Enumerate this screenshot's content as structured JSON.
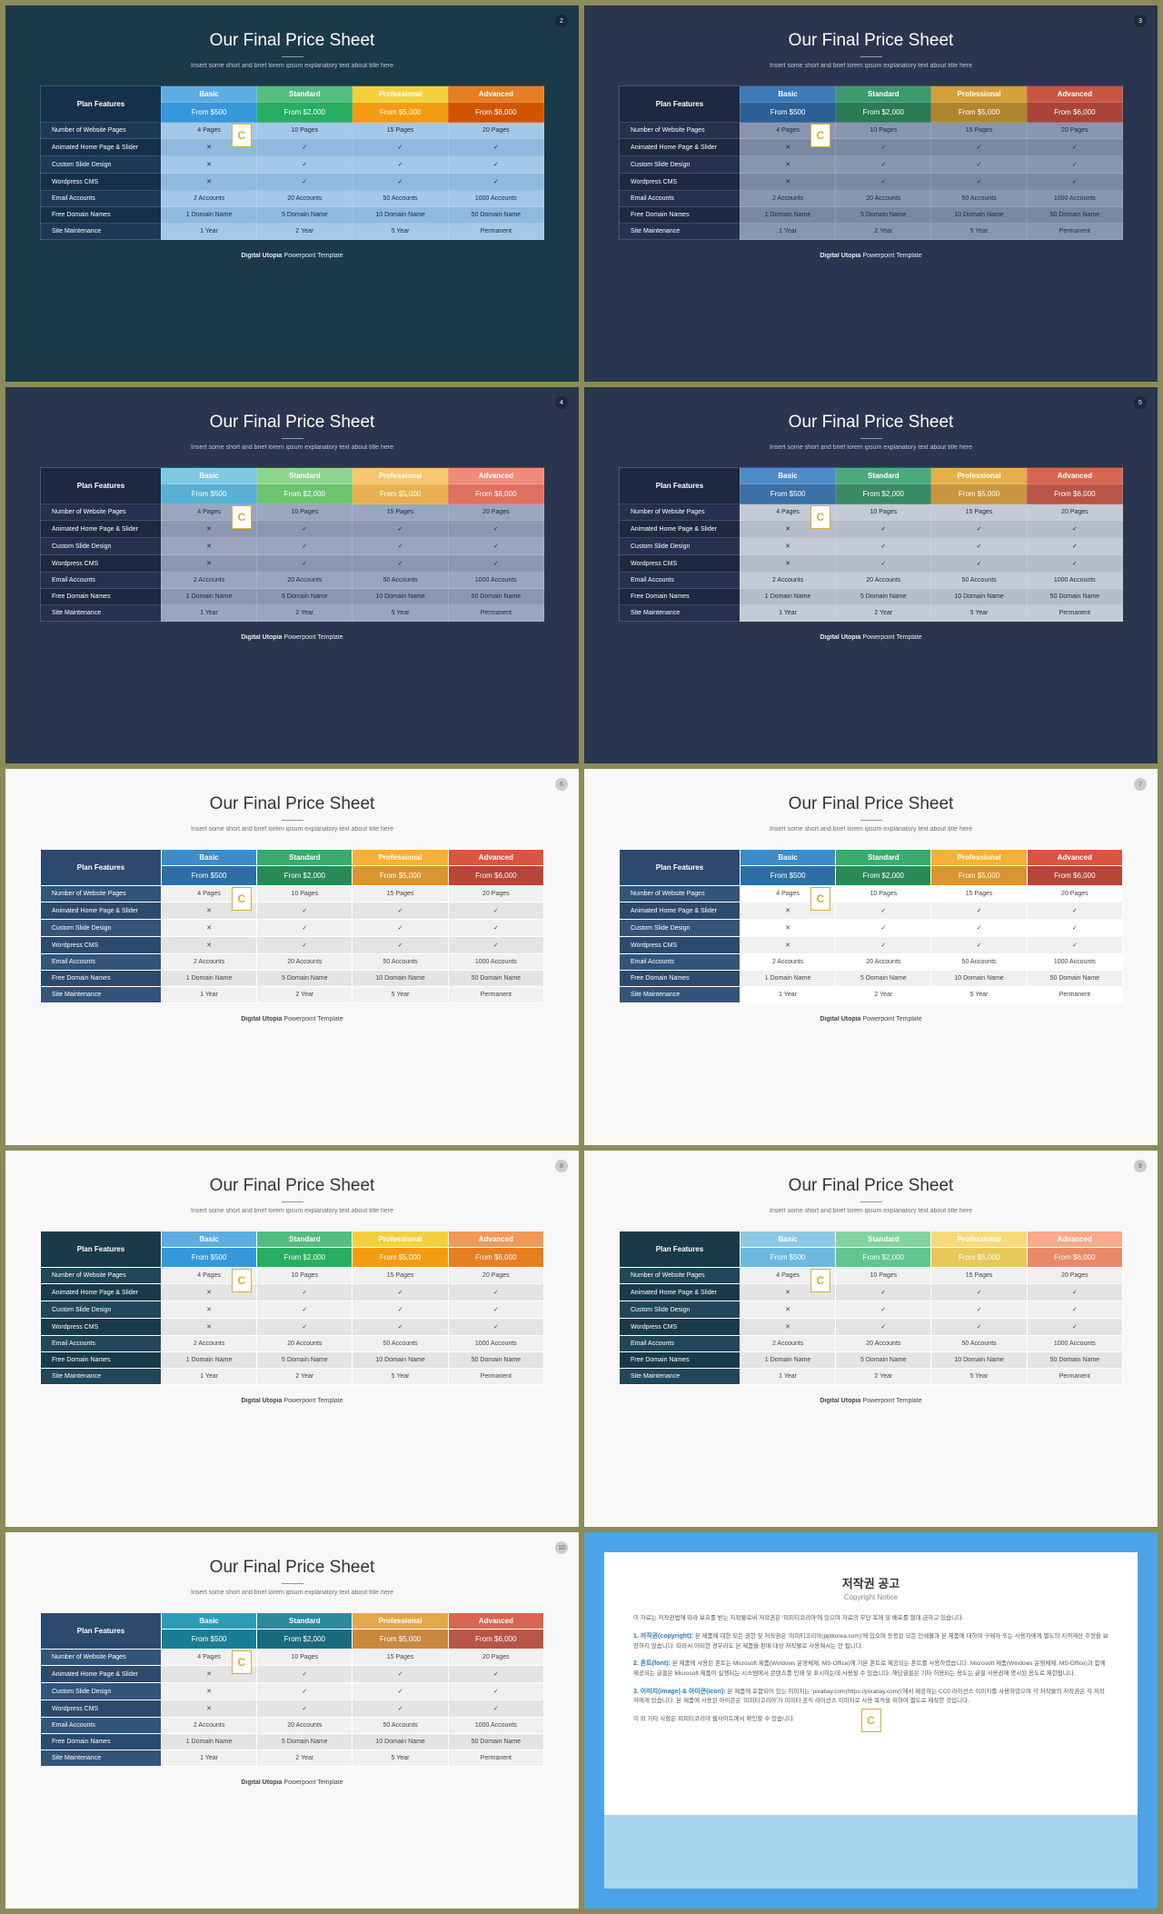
{
  "title": "Our Final Price Sheet",
  "subtitle": "Insert some short and brief lorem ipsum explanatory text about title here",
  "footer_bold": "Digital Utopia",
  "footer_rest": " Powerpoint Template",
  "feat_header": "Plan Features",
  "plans": [
    "Basic",
    "Standard",
    "Professional",
    "Advanced"
  ],
  "prices": [
    "From $500",
    "From $2,000",
    "From $5,000",
    "From $6,000"
  ],
  "features": [
    "Number of Website Pages",
    "Animated Home Page & Slider",
    "Custom Slide Design",
    "Wordpress CMS",
    "Email Accounts",
    "Free Domain Names",
    "Site Maintenance"
  ],
  "rows": [
    [
      "4 Pages",
      "10 Pages",
      "15 Pages",
      "20 Pages"
    ],
    [
      "✕",
      "✓",
      "✓",
      "✓"
    ],
    [
      "✕",
      "✓",
      "✓",
      "✓"
    ],
    [
      "✕",
      "✓",
      "✓",
      "✓"
    ],
    [
      "2 Accounts",
      "20 Accounts",
      "50 Accounts",
      "1000 Accounts"
    ],
    [
      "1 Domain Name",
      "5 Domain Name",
      "10 Domain Name",
      "50 Domain Name"
    ],
    [
      "1 Year",
      "2 Year",
      "5 Year",
      "Permanent"
    ]
  ],
  "slides": [
    {
      "num": "2",
      "bg": "#1a3a4a",
      "feat_bg": "#15314a",
      "feat_alt": "#1c3a56",
      "hdrs": [
        "#5dade2",
        "#52be80",
        "#f4d03f",
        "#e67e22"
      ],
      "prices_bg": [
        "#3498db",
        "#27ae60",
        "#f39c12",
        "#d35400"
      ],
      "row_bg": [
        "#a4c8e8",
        "#8fb9de"
      ]
    },
    {
      "num": "3",
      "bg": "#2a3550",
      "feat_bg": "#1e2840",
      "feat_alt": "#263150",
      "hdrs": [
        "#3d7ab8",
        "#3a9a6e",
        "#d4a03a",
        "#c85542"
      ],
      "prices_bg": [
        "#2c5f94",
        "#2a7a55",
        "#b08530",
        "#a84536"
      ],
      "row_bg": [
        "#8896b0",
        "#7a88a2"
      ]
    },
    {
      "num": "4",
      "bg": "#2a3550",
      "feat_bg": "#1e2840",
      "feat_alt": "#263150",
      "hdrs": [
        "#7ec8e3",
        "#8ed690",
        "#f5c76e",
        "#f08a7a"
      ],
      "prices_bg": [
        "#5ab0d4",
        "#6cc470",
        "#e8b050",
        "#e07060"
      ],
      "row_bg": [
        "#9aa6be",
        "#8c98b0"
      ]
    },
    {
      "num": "5",
      "bg": "#2a3550",
      "feat_bg": "#1e2840",
      "feat_alt": "#263150",
      "hdrs": [
        "#4d8ac8",
        "#4aaa7e",
        "#e4b04a",
        "#d86552"
      ],
      "prices_bg": [
        "#3c6fa4",
        "#3a8a65",
        "#c89540",
        "#b85546"
      ],
      "row_bg": [
        "#c4cad6",
        "#b6bcc8"
      ]
    },
    {
      "num": "6",
      "bg": "#f8f8f8",
      "feat_bg": "#2c4a6e",
      "feat_alt": "#34547a",
      "hdrs": [
        "#3d8cc8",
        "#3aaa6e",
        "#f4b03a",
        "#d85542"
      ],
      "prices_bg": [
        "#2c6fa4",
        "#2a8a55",
        "#d89530",
        "#b84536"
      ],
      "row_bg": [
        "#f0f0f0",
        "#e4e4e4"
      ]
    },
    {
      "num": "7",
      "bg": "#f8f8f8",
      "feat_bg": "#2c4a6e",
      "feat_alt": "#34547a",
      "hdrs": [
        "#3d8cc8",
        "#3aaa6e",
        "#f4b03a",
        "#d85542"
      ],
      "prices_bg": [
        "#2c6fa4",
        "#2a8a55",
        "#d89530",
        "#b84536"
      ],
      "row_bg": [
        "#ffffff",
        "#f0f0f0"
      ]
    },
    {
      "num": "8",
      "bg": "#f8f8f8",
      "feat_bg": "#1a3a4a",
      "feat_alt": "#22465a",
      "hdrs": [
        "#5dade2",
        "#52be80",
        "#f4d03f",
        "#f09a5a"
      ],
      "prices_bg": [
        "#3498db",
        "#27ae60",
        "#f39c12",
        "#e67e22"
      ],
      "row_bg": [
        "#f0f0f0",
        "#e4e4e4"
      ]
    },
    {
      "num": "9",
      "bg": "#f8f8f8",
      "feat_bg": "#1a3a4a",
      "feat_alt": "#22465a",
      "hdrs": [
        "#8dc8e8",
        "#82d4a0",
        "#f8da7a",
        "#f8aa8a"
      ],
      "prices_bg": [
        "#6db8de",
        "#62c490",
        "#e8c85a",
        "#e88a6a"
      ],
      "row_bg": [
        "#f0f0f0",
        "#e4e4e4"
      ]
    },
    {
      "num": "10",
      "bg": "#f8f8f8",
      "feat_bg": "#2c4a6e",
      "feat_alt": "#34547a",
      "hdrs": [
        "#2a9db8",
        "#2a8a9e",
        "#e4a84a",
        "#d86552"
      ],
      "prices_bg": [
        "#1a7d94",
        "#1a6a7e",
        "#c88840",
        "#b85546"
      ],
      "row_bg": [
        "#f0f0f0",
        "#e4e4e4"
      ]
    }
  ],
  "notice": {
    "title_ko": "저작권 공고",
    "title_en": "Copyright Notice",
    "intro": "이 자료는 저작권법에 따라 보호를 받는 저작물로써 저작권은 '피피티코리아'에 있으며 자료의 무단 복제 및 배포를 절대 금하고 있습니다.",
    "sec1_title": "1. 저작권(copyright):",
    "sec1_body": "본 제품에 대한 모든 권한 및 저작권은 '피피티코리아(pptkorea.com)'에 있으며 동봉된 모든 인쇄물과 본 제품에 대하여 구매자 또는 사용자에게 별도의 지적재산 주장을 보장하지 않습니다. 따라서 어떠한 경우라도 본 제품을 판매 대상 저작물로 사용해서는 안 됩니다.",
    "sec2_title": "2. 폰트(font):",
    "sec2_body": "본 제품에 사용된 폰트는 Microsoft 제품(Windows 운영체제, MS-Office)에 기본 폰트로 제공되는 폰트를 사용하였습니다. Microsoft 제품(Windows 운영체제, MS-Office)과 함께 제공되는 글꼴은 Microsoft 제품이 실행되는 시스템에서 콘텐츠를 인쇄 및 표시하는데 사용할 수 있습니다. 해당글꼴은 기타 허용되는 용도는 글꼴 사용권에 명시된 용도로 제한됩니다.",
    "sec3_title": "3. 이미지(image) & 아이콘(icon):",
    "sec3_body": "본 제품에 포함되어 있는 이미지는 'pixabay.com(https://pixabay.com/)'에서 제공하는 CC0 라이선스 이미지를 사용하였으며 각 저작물의 저작권은 각 저작자에게 있습니다. 본 제품에 사용된 아이콘은 '피피티코리아'가 피피티 공식 라이선스 이미지로 사용 목적을 위하여 별도로 제작한 것입니다.",
    "outro": "이 외 기타 사항은 피피티코리아 웹사이트에서 확인할 수 있습니다."
  }
}
